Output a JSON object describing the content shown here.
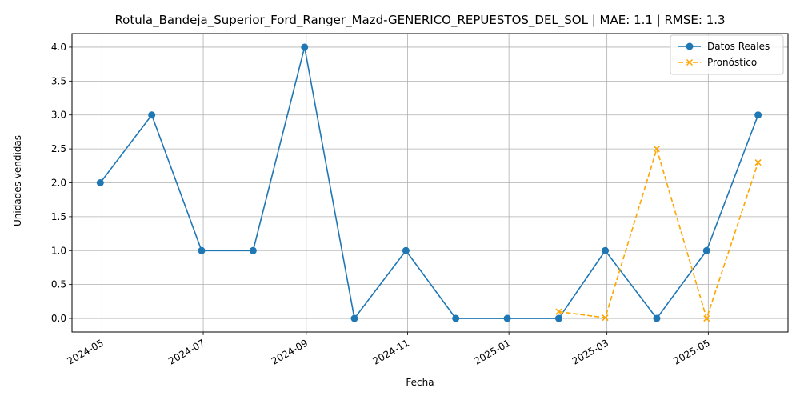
{
  "chart_data": {
    "type": "line",
    "title": "Rotula_Bandeja_Superior_Ford_Ranger_Mazd-GENERICO_REPUESTOS_DEL_SOL | MAE: 1.1 | RMSE: 1.3",
    "xlabel": "Fecha",
    "ylabel": "Unidades vendidas",
    "xlim": [
      "2024-04-13",
      "2025-06-18"
    ],
    "ylim": [
      -0.2,
      4.2
    ],
    "grid": true,
    "legend_position": "top-right",
    "x_ticks": [
      "2024-05",
      "2024-07",
      "2024-09",
      "2024-11",
      "2025-01",
      "2025-03",
      "2025-05"
    ],
    "y_ticks": [
      "0.0",
      "0.5",
      "1.0",
      "1.5",
      "2.0",
      "2.5",
      "3.0",
      "3.5",
      "4.0"
    ],
    "series": [
      {
        "name": "Datos Reales",
        "color": "#1f77b4",
        "style": "solid",
        "marker": "circle",
        "x": [
          "2024-04-30",
          "2024-05-31",
          "2024-06-30",
          "2024-07-31",
          "2024-08-31",
          "2024-09-30",
          "2024-10-31",
          "2024-11-30",
          "2024-12-31",
          "2025-01-31",
          "2025-02-28",
          "2025-03-31",
          "2025-04-30",
          "2025-05-31"
        ],
        "values": [
          2,
          3,
          1,
          1,
          4,
          0,
          1,
          0,
          0,
          0,
          1,
          0,
          1,
          3
        ]
      },
      {
        "name": "Pronóstico",
        "color": "#ffa500",
        "style": "dashed",
        "marker": "x",
        "x": [
          "2025-01-31",
          "2025-02-28",
          "2025-03-31",
          "2025-04-30",
          "2025-05-31"
        ],
        "values": [
          0.1,
          0.01,
          2.5,
          0.0,
          2.3
        ]
      }
    ]
  }
}
